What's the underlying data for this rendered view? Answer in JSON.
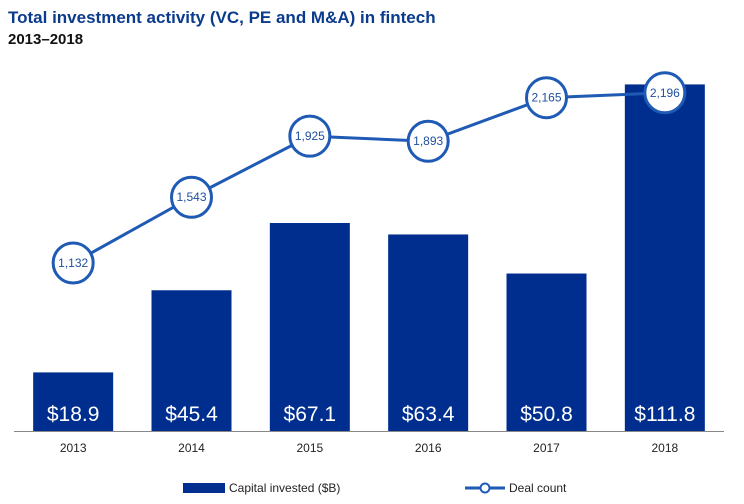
{
  "title": "Total investment activity (VC, PE and M&A) in fintech",
  "subtitle": "2013–2018",
  "colors": {
    "bar": "#002e8f",
    "line": "#1f5bb5",
    "marker_text": "#1f4f9f",
    "bar_label": "#ffffff"
  },
  "chart_data": {
    "type": "bar",
    "categories": [
      "2013",
      "2014",
      "2015",
      "2016",
      "2017",
      "2018"
    ],
    "series": [
      {
        "name": "Capital invested ($B)",
        "type": "bar",
        "values": [
          18.9,
          45.4,
          67.1,
          63.4,
          50.8,
          111.8
        ],
        "labels": [
          "$18.9",
          "$45.4",
          "$67.1",
          "$63.4",
          "$50.8",
          "$111.8"
        ]
      },
      {
        "name": "Deal count",
        "type": "line",
        "values": [
          1132,
          1543,
          1925,
          1893,
          2165,
          2196
        ],
        "labels": [
          "1,132",
          "1,543",
          "1,925",
          "1,893",
          "2,165",
          "2,196"
        ]
      }
    ],
    "legend": "bottom",
    "grid": false
  },
  "legend": {
    "bar_label": "Capital invested ($B)",
    "line_label": "Deal count"
  }
}
